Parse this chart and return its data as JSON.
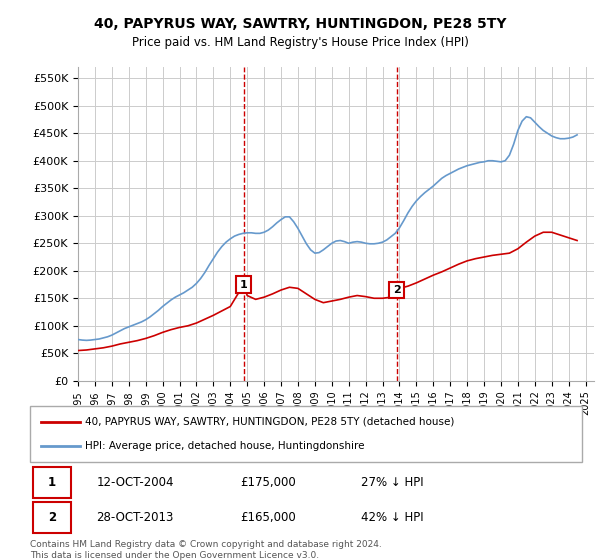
{
  "title": "40, PAPYRUS WAY, SAWTRY, HUNTINGDON, PE28 5TY",
  "subtitle": "Price paid vs. HM Land Registry's House Price Index (HPI)",
  "xlabel": "",
  "ylabel": "",
  "ylim": [
    0,
    570000
  ],
  "yticks": [
    0,
    50000,
    100000,
    150000,
    200000,
    250000,
    300000,
    350000,
    400000,
    450000,
    500000,
    550000
  ],
  "ytick_labels": [
    "£0",
    "£50K",
    "£100K",
    "£150K",
    "£200K",
    "£250K",
    "£300K",
    "£350K",
    "£400K",
    "£450K",
    "£500K",
    "£550K"
  ],
  "xlim_start": 1995.0,
  "xlim_end": 2025.5,
  "xtick_years": [
    1995,
    1996,
    1997,
    1998,
    1999,
    2000,
    2001,
    2002,
    2003,
    2004,
    2005,
    2006,
    2007,
    2008,
    2009,
    2010,
    2011,
    2012,
    2013,
    2014,
    2015,
    2016,
    2017,
    2018,
    2019,
    2020,
    2021,
    2022,
    2023,
    2024,
    2025
  ],
  "grid_color": "#cccccc",
  "background_color": "#ffffff",
  "plot_bg_color": "#ffffff",
  "marker1_x": 2004.79,
  "marker1_y": 175000,
  "marker1_label": "1",
  "marker2_x": 2013.83,
  "marker2_y": 165000,
  "marker2_label": "2",
  "red_line_color": "#cc0000",
  "blue_line_color": "#6699cc",
  "vline_color": "#cc0000",
  "legend_label_red": "40, PAPYRUS WAY, SAWTRY, HUNTINGDON, PE28 5TY (detached house)",
  "legend_label_blue": "HPI: Average price, detached house, Huntingdonshire",
  "table_row1": [
    "1",
    "12-OCT-2004",
    "£175,000",
    "27% ↓ HPI"
  ],
  "table_row2": [
    "2",
    "28-OCT-2013",
    "£165,000",
    "42% ↓ HPI"
  ],
  "footer": "Contains HM Land Registry data © Crown copyright and database right 2024.\nThis data is licensed under the Open Government Licence v3.0.",
  "hpi_years": [
    1995.0,
    1995.25,
    1995.5,
    1995.75,
    1996.0,
    1996.25,
    1996.5,
    1996.75,
    1997.0,
    1997.25,
    1997.5,
    1997.75,
    1998.0,
    1998.25,
    1998.5,
    1998.75,
    1999.0,
    1999.25,
    1999.5,
    1999.75,
    2000.0,
    2000.25,
    2000.5,
    2000.75,
    2001.0,
    2001.25,
    2001.5,
    2001.75,
    2002.0,
    2002.25,
    2002.5,
    2002.75,
    2003.0,
    2003.25,
    2003.5,
    2003.75,
    2004.0,
    2004.25,
    2004.5,
    2004.75,
    2005.0,
    2005.25,
    2005.5,
    2005.75,
    2006.0,
    2006.25,
    2006.5,
    2006.75,
    2007.0,
    2007.25,
    2007.5,
    2007.75,
    2008.0,
    2008.25,
    2008.5,
    2008.75,
    2009.0,
    2009.25,
    2009.5,
    2009.75,
    2010.0,
    2010.25,
    2010.5,
    2010.75,
    2011.0,
    2011.25,
    2011.5,
    2011.75,
    2012.0,
    2012.25,
    2012.5,
    2012.75,
    2013.0,
    2013.25,
    2013.5,
    2013.75,
    2014.0,
    2014.25,
    2014.5,
    2014.75,
    2015.0,
    2015.25,
    2015.5,
    2015.75,
    2016.0,
    2016.25,
    2016.5,
    2016.75,
    2017.0,
    2017.25,
    2017.5,
    2017.75,
    2018.0,
    2018.25,
    2018.5,
    2018.75,
    2019.0,
    2019.25,
    2019.5,
    2019.75,
    2020.0,
    2020.25,
    2020.5,
    2020.75,
    2021.0,
    2021.25,
    2021.5,
    2021.75,
    2022.0,
    2022.25,
    2022.5,
    2022.75,
    2023.0,
    2023.25,
    2023.5,
    2023.75,
    2024.0,
    2024.25,
    2024.5
  ],
  "hpi_values": [
    75000,
    74000,
    73500,
    74000,
    75000,
    76000,
    78000,
    80000,
    83000,
    87000,
    91000,
    95000,
    98000,
    101000,
    104000,
    107000,
    111000,
    116000,
    122000,
    128000,
    135000,
    141000,
    147000,
    152000,
    156000,
    160000,
    165000,
    170000,
    177000,
    186000,
    197000,
    210000,
    222000,
    234000,
    244000,
    252000,
    258000,
    263000,
    266000,
    268000,
    269000,
    269000,
    268000,
    268000,
    270000,
    274000,
    280000,
    287000,
    293000,
    298000,
    298000,
    289000,
    277000,
    263000,
    249000,
    238000,
    232000,
    233000,
    238000,
    244000,
    250000,
    254000,
    255000,
    253000,
    250000,
    252000,
    253000,
    252000,
    250000,
    249000,
    249000,
    250000,
    252000,
    256000,
    262000,
    268000,
    278000,
    291000,
    305000,
    317000,
    327000,
    335000,
    342000,
    348000,
    354000,
    361000,
    368000,
    373000,
    377000,
    381000,
    385000,
    388000,
    391000,
    393000,
    395000,
    397000,
    398000,
    400000,
    400000,
    399000,
    398000,
    400000,
    410000,
    430000,
    455000,
    472000,
    480000,
    478000,
    470000,
    462000,
    455000,
    450000,
    445000,
    442000,
    440000,
    440000,
    441000,
    443000,
    447000
  ],
  "red_years": [
    1995.0,
    1995.5,
    1996.0,
    1996.5,
    1997.0,
    1997.5,
    1998.0,
    1998.5,
    1999.0,
    1999.5,
    2000.0,
    2000.5,
    2001.0,
    2001.5,
    2002.0,
    2002.5,
    2003.0,
    2003.5,
    2004.0,
    2004.79,
    2005.0,
    2005.5,
    2006.0,
    2006.5,
    2007.0,
    2007.5,
    2008.0,
    2008.5,
    2009.0,
    2009.5,
    2010.0,
    2010.5,
    2011.0,
    2011.5,
    2012.0,
    2012.5,
    2013.0,
    2013.5,
    2013.83,
    2014.0,
    2014.5,
    2015.0,
    2015.5,
    2016.0,
    2016.5,
    2017.0,
    2017.5,
    2018.0,
    2018.5,
    2019.0,
    2019.5,
    2020.0,
    2020.5,
    2021.0,
    2021.5,
    2022.0,
    2022.5,
    2023.0,
    2023.5,
    2024.0,
    2024.5
  ],
  "red_values": [
    55000,
    56000,
    58000,
    60000,
    63000,
    67000,
    70000,
    73000,
    77000,
    82000,
    88000,
    93000,
    97000,
    100000,
    105000,
    112000,
    119000,
    127000,
    135000,
    175000,
    155000,
    148000,
    152000,
    158000,
    165000,
    170000,
    168000,
    158000,
    148000,
    142000,
    145000,
    148000,
    152000,
    155000,
    153000,
    150000,
    150000,
    152000,
    165000,
    168000,
    172000,
    178000,
    185000,
    192000,
    198000,
    205000,
    212000,
    218000,
    222000,
    225000,
    228000,
    230000,
    232000,
    240000,
    252000,
    263000,
    270000,
    270000,
    265000,
    260000,
    255000
  ]
}
